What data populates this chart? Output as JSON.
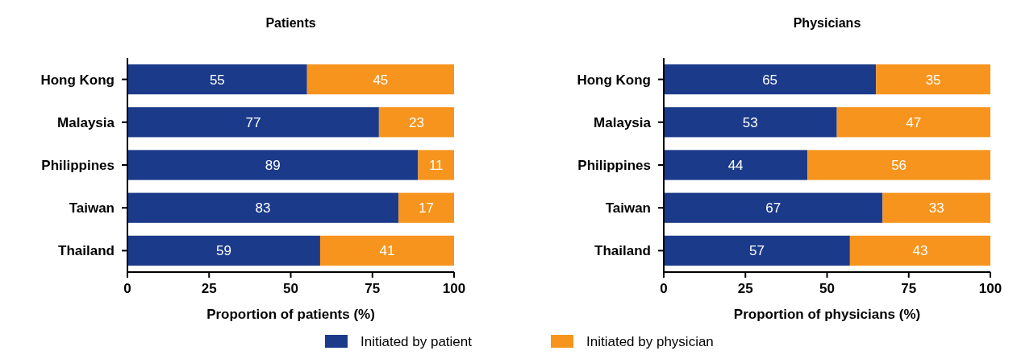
{
  "chart_data": [
    {
      "type": "bar",
      "orientation": "horizontal",
      "stacked": true,
      "title": "Patients",
      "xlabel": "Proportion of patients (%)",
      "categories": [
        "Hong Kong",
        "Malaysia",
        "Philippines",
        "Taiwan",
        "Thailand"
      ],
      "series": [
        {
          "name": "Initiated by patient",
          "color": "#1b3a8a",
          "values": [
            55,
            77,
            89,
            83,
            59
          ]
        },
        {
          "name": "Initiated by physician",
          "color": "#f7941d",
          "values": [
            45,
            23,
            11,
            17,
            41
          ]
        }
      ],
      "xlim": [
        0,
        100
      ],
      "xticks": [
        0,
        25,
        50,
        75,
        100
      ],
      "data_labels": true,
      "legend": "bottom"
    },
    {
      "type": "bar",
      "orientation": "horizontal",
      "stacked": true,
      "title": "Physicians",
      "xlabel": "Proportion of physicians (%)",
      "categories": [
        "Hong Kong",
        "Malaysia",
        "Philippines",
        "Taiwan",
        "Thailand"
      ],
      "series": [
        {
          "color": "#1b3a8a",
          "values": [
            65,
            53,
            44,
            67,
            57
          ]
        },
        {
          "color": "#f7941d",
          "values": [
            35,
            47,
            56,
            33,
            43
          ]
        }
      ],
      "xlim": [
        0,
        100
      ],
      "xticks": [
        0,
        25,
        50,
        75,
        100
      ],
      "data_labels": true
    }
  ]
}
